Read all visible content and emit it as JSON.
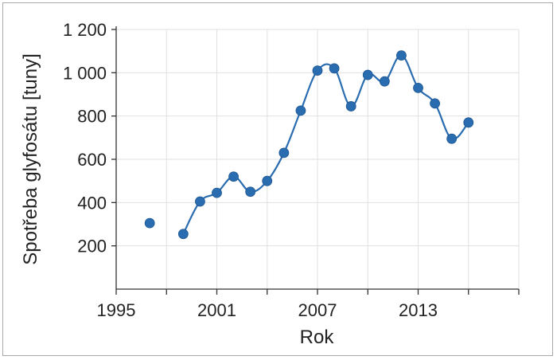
{
  "chart_data": {
    "type": "line",
    "xlabel": "Rok",
    "ylabel": "Spotřeba glyfosátu [tuny]",
    "xlim": [
      1995,
      2019
    ],
    "ylim": [
      0,
      1200
    ],
    "x_ticks": [
      1995,
      1998,
      2001,
      2004,
      2007,
      2010,
      2013,
      2016,
      2019
    ],
    "x_tick_labels": [
      {
        "value": 1995,
        "label": "1995"
      },
      {
        "value": 2001,
        "label": "2001"
      },
      {
        "value": 2007,
        "label": "2007"
      },
      {
        "value": 2013,
        "label": "2013"
      }
    ],
    "y_ticks": [
      {
        "value": 200,
        "label": "200"
      },
      {
        "value": 400,
        "label": "400"
      },
      {
        "value": 600,
        "label": "600"
      },
      {
        "value": 800,
        "label": "800"
      },
      {
        "value": 1000,
        "label": "1 000"
      },
      {
        "value": 1200,
        "label": "1 200"
      }
    ],
    "grid": true,
    "series": [
      {
        "color": "#2a6cb0",
        "points": [
          {
            "x": 1997,
            "y": 305
          },
          {
            "x": 1999,
            "y": 255
          },
          {
            "x": 2000,
            "y": 405
          },
          {
            "x": 2001,
            "y": 445
          },
          {
            "x": 2002,
            "y": 520
          },
          {
            "x": 2003,
            "y": 450
          },
          {
            "x": 2004,
            "y": 500
          },
          {
            "x": 2005,
            "y": 630
          },
          {
            "x": 2006,
            "y": 825
          },
          {
            "x": 2007,
            "y": 1010
          },
          {
            "x": 2008,
            "y": 1020
          },
          {
            "x": 2009,
            "y": 845
          },
          {
            "x": 2010,
            "y": 990
          },
          {
            "x": 2011,
            "y": 960
          },
          {
            "x": 2012,
            "y": 1080
          },
          {
            "x": 2013,
            "y": 930
          },
          {
            "x": 2014,
            "y": 858
          },
          {
            "x": 2015,
            "y": 695
          },
          {
            "x": 2016,
            "y": 770
          }
        ]
      }
    ]
  }
}
